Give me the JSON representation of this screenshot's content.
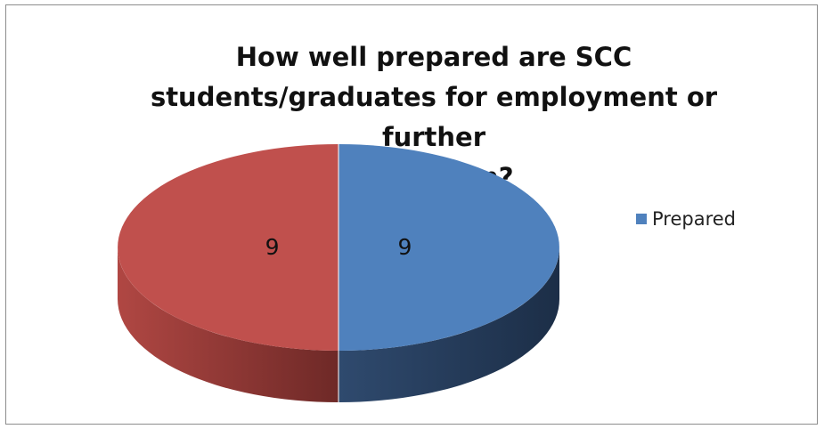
{
  "chart_data": {
    "type": "pie",
    "title_lines": [
      "How well prepared are SCC",
      "students/graduates for employment or further",
      "education?"
    ],
    "slices": [
      {
        "label": "Prepared",
        "value": 9,
        "color": "#4f81bd",
        "side_color": "#243b5a"
      },
      {
        "label": "",
        "value": 9,
        "color": "#c0504d",
        "side_color": "#7a2f2d"
      }
    ],
    "data_labels": [
      "9",
      "9"
    ],
    "legend": {
      "placement": "right",
      "entries": [
        "Prepared"
      ]
    },
    "style": "3d"
  }
}
